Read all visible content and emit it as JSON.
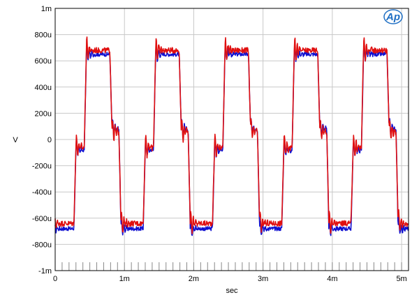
{
  "chart_data": {
    "type": "line",
    "title": "",
    "xlabel": "sec",
    "ylabel": "V",
    "xlim": [
      0,
      0.0051
    ],
    "ylim": [
      -0.001,
      0.001
    ],
    "x_ticks": [
      {
        "value": 0,
        "label": "0"
      },
      {
        "value": 0.001,
        "label": "1m"
      },
      {
        "value": 0.002,
        "label": "2m"
      },
      {
        "value": 0.003,
        "label": "3m"
      },
      {
        "value": 0.004,
        "label": "4m"
      },
      {
        "value": 0.005,
        "label": "5m"
      }
    ],
    "y_ticks": [
      {
        "value": 0.001,
        "label": "1m"
      },
      {
        "value": 0.0008,
        "label": "800u"
      },
      {
        "value": 0.0006,
        "label": "600u"
      },
      {
        "value": 0.0004,
        "label": "400u"
      },
      {
        "value": 0.0002,
        "label": "200u"
      },
      {
        "value": 0,
        "label": "0"
      },
      {
        "value": -0.0002,
        "label": "-200u"
      },
      {
        "value": -0.0004,
        "label": "-400u"
      },
      {
        "value": -0.0006,
        "label": "-600u"
      },
      {
        "value": -0.0008,
        "label": "-800u"
      },
      {
        "value": -0.001,
        "label": "-1m"
      }
    ],
    "grid": true,
    "period": 0.001,
    "series": [
      {
        "color": "#1010d0",
        "levels": {
          "high": 0.00065,
          "low": -0.00068,
          "step": 8e-05
        },
        "ringing_amplitude": 9e-05
      },
      {
        "color": "#e01010",
        "levels": {
          "high": 0.00068,
          "low": -0.00064,
          "step": 6e-05
        },
        "ringing_amplitude": 0.00012
      }
    ],
    "logo": "AP"
  }
}
